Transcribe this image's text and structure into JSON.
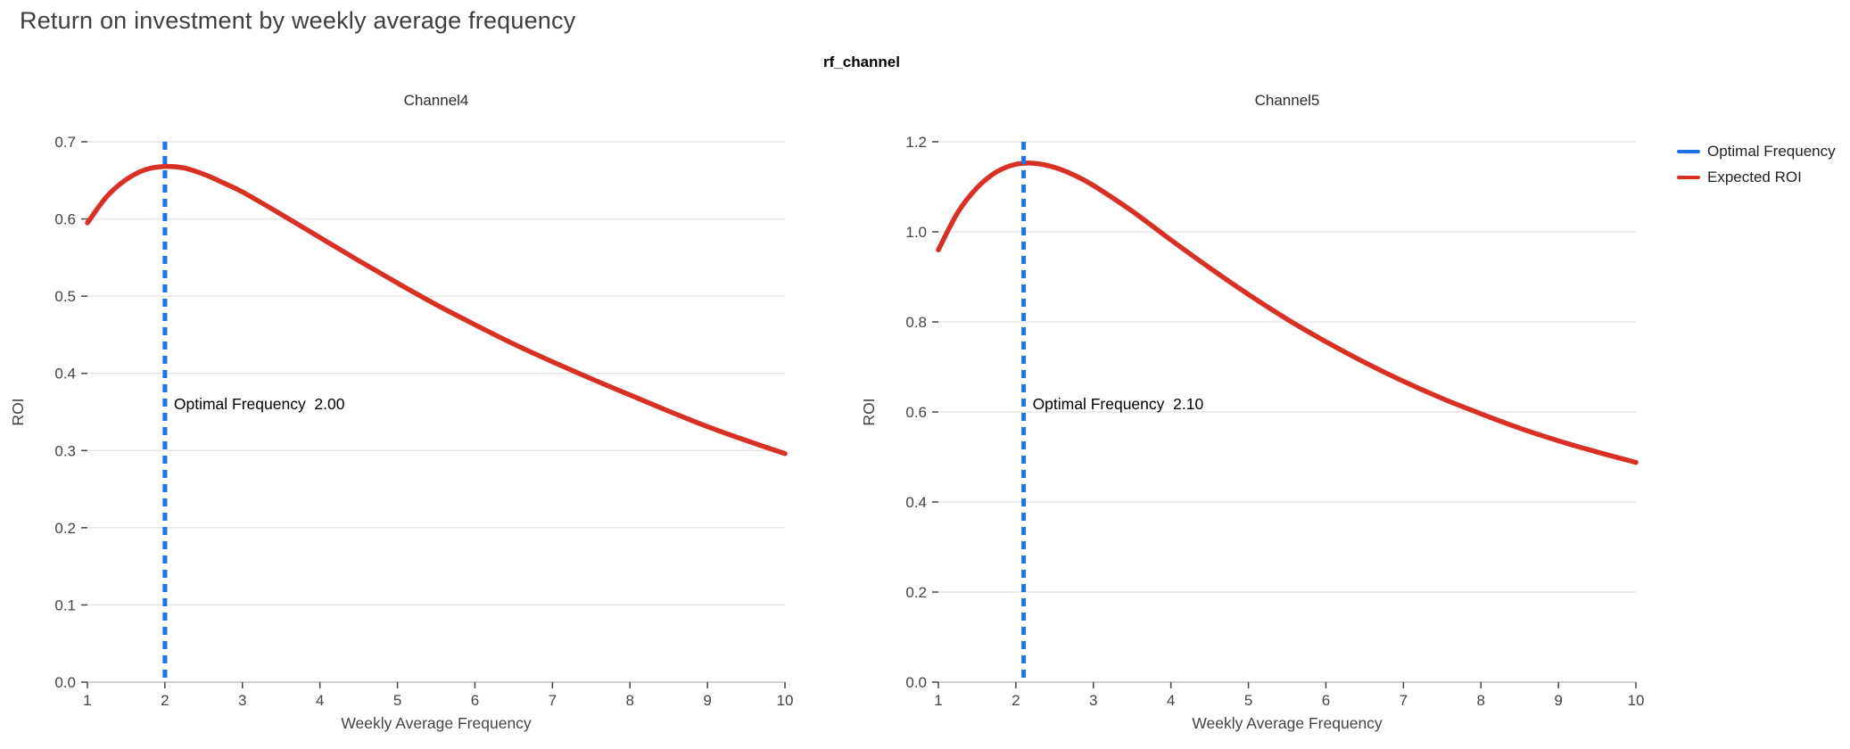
{
  "page": {
    "title": "Return on investment by weekly average frequency",
    "facet_title": "rf_channel"
  },
  "legend": {
    "items": [
      {
        "label": "Optimal Frequency",
        "color": "#1a73e8"
      },
      {
        "label": "Expected ROI",
        "color": "#d93025"
      }
    ]
  },
  "colors": {
    "optimal_frequency_line": "#1a73e8",
    "roi_curve": "#d93025",
    "grid": "#e6e6e6",
    "zero_line": "#d0d0d0",
    "tick": "#444444",
    "annotation_text": "#000000",
    "axis_title": "#444444"
  },
  "chart_data": [
    {
      "type": "line",
      "title": "Channel4",
      "xlabel": "Weekly Average Frequency",
      "ylabel": "ROI",
      "xlim": [
        1,
        10
      ],
      "ylim": [
        0,
        0.7
      ],
      "xticks": [
        1,
        2,
        3,
        4,
        5,
        6,
        7,
        8,
        9,
        10
      ],
      "yticks": [
        0.0,
        0.1,
        0.2,
        0.3,
        0.4,
        0.5,
        0.6,
        0.7
      ],
      "grid": "horizontal",
      "optimal_frequency": 2.0,
      "annotation": "Optimal Frequency  2.00",
      "series": [
        {
          "name": "Expected ROI",
          "x": [
            1,
            1.25,
            1.5,
            1.75,
            2,
            2.25,
            2.5,
            2.75,
            3,
            3.5,
            4,
            4.5,
            5,
            5.5,
            6,
            6.5,
            7,
            7.5,
            8,
            8.5,
            9,
            9.5,
            10
          ],
          "y": [
            0.595,
            0.629,
            0.651,
            0.664,
            0.668,
            0.666,
            0.658,
            0.647,
            0.635,
            0.606,
            0.576,
            0.546,
            0.517,
            0.489,
            0.463,
            0.438,
            0.415,
            0.393,
            0.372,
            0.351,
            0.331,
            0.313,
            0.296
          ]
        }
      ]
    },
    {
      "type": "line",
      "title": "Channel5",
      "xlabel": "Weekly Average Frequency",
      "ylabel": "ROI",
      "xlim": [
        1,
        10
      ],
      "ylim": [
        0,
        1.2
      ],
      "xticks": [
        1,
        2,
        3,
        4,
        5,
        6,
        7,
        8,
        9,
        10
      ],
      "yticks": [
        0.0,
        0.2,
        0.4,
        0.6,
        0.8,
        1.0,
        1.2
      ],
      "grid": "horizontal",
      "optimal_frequency": 2.1,
      "annotation": "Optimal Frequency  2.10",
      "series": [
        {
          "name": "Expected ROI",
          "x": [
            1,
            1.25,
            1.5,
            1.75,
            2,
            2.25,
            2.5,
            2.75,
            3,
            3.5,
            4,
            4.5,
            5,
            5.5,
            6,
            6.5,
            7,
            7.5,
            8,
            8.5,
            9,
            9.5,
            10
          ],
          "y": [
            0.96,
            1.043,
            1.098,
            1.133,
            1.15,
            1.152,
            1.143,
            1.126,
            1.103,
            1.046,
            0.982,
            0.92,
            0.861,
            0.806,
            0.756,
            0.71,
            0.668,
            0.63,
            0.596,
            0.564,
            0.536,
            0.511,
            0.488
          ]
        }
      ]
    }
  ]
}
